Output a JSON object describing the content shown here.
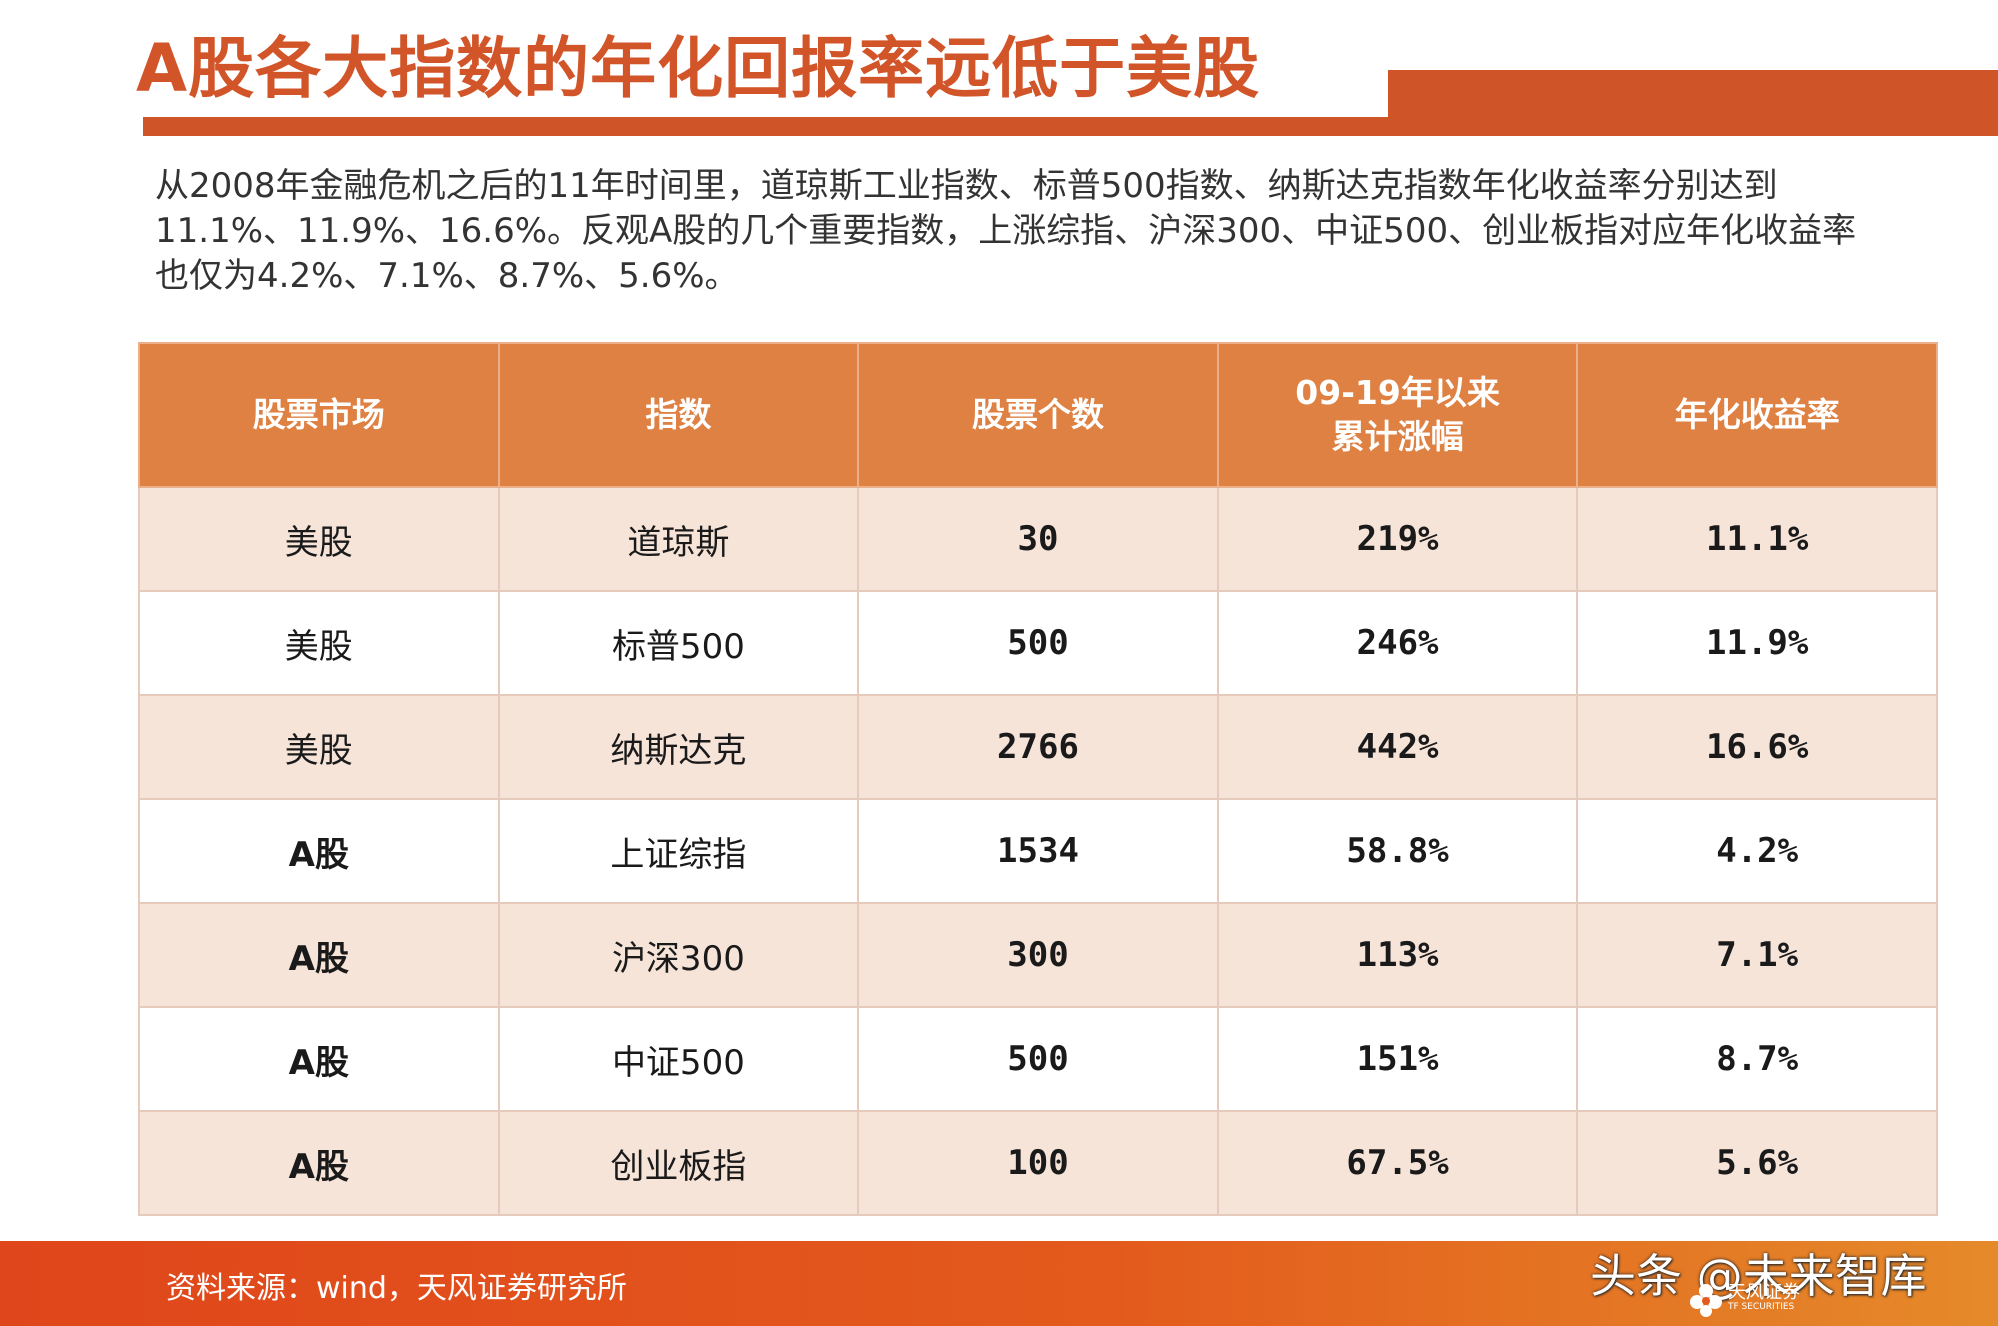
{
  "slide": {
    "title": "A股各大指数的年化回报率远低于美股",
    "intro_lines": [
      "从2008年金融危机之后的11年时间里，道琼斯工业指数、标普500指数、纳斯达克指数年化收益率分别达到",
      "11.1%、11.9%、16.6%。反观A股的几个重要指数，上涨综指、沪深300、中证500、创业板指对应年化收益率",
      "也仅为4.2%、7.1%、8.7%、5.6%。"
    ]
  },
  "table": {
    "headers": [
      "股票市场",
      "指数",
      "股票个数",
      "09-19年以来\n累计涨幅",
      "年化收益率"
    ],
    "rows": [
      {
        "market": "美股",
        "index": "道琼斯",
        "count": "30",
        "cumulative": "219%",
        "annualized": "11.1%"
      },
      {
        "market": "美股",
        "index": "标普500",
        "count": "500",
        "cumulative": "246%",
        "annualized": "11.9%"
      },
      {
        "market": "美股",
        "index": "纳斯达克",
        "count": "2766",
        "cumulative": "442%",
        "annualized": "16.6%"
      },
      {
        "market": "A股",
        "index": "上证综指",
        "count": "1534",
        "cumulative": "58.8%",
        "annualized": "4.2%"
      },
      {
        "market": "A股",
        "index": "沪深300",
        "count": "300",
        "cumulative": "113%",
        "annualized": "7.1%"
      },
      {
        "market": "A股",
        "index": "中证500",
        "count": "500",
        "cumulative": "151%",
        "annualized": "8.7%"
      },
      {
        "market": "A股",
        "index": "创业板指",
        "count": "100",
        "cumulative": "67.5%",
        "annualized": "5.6%"
      }
    ]
  },
  "footer": {
    "source": "资料来源：wind，天风证券研究所",
    "watermark": "头条 @未来智库",
    "logo_cn": "天风证券",
    "logo_en": "TF SECURITIES"
  },
  "colors": {
    "accent": "#cf5529",
    "header_bg": "#de8143",
    "row_tint": "#f6e4d9",
    "positive_red": "#e8312d",
    "positive_green": "#3ea84b"
  }
}
